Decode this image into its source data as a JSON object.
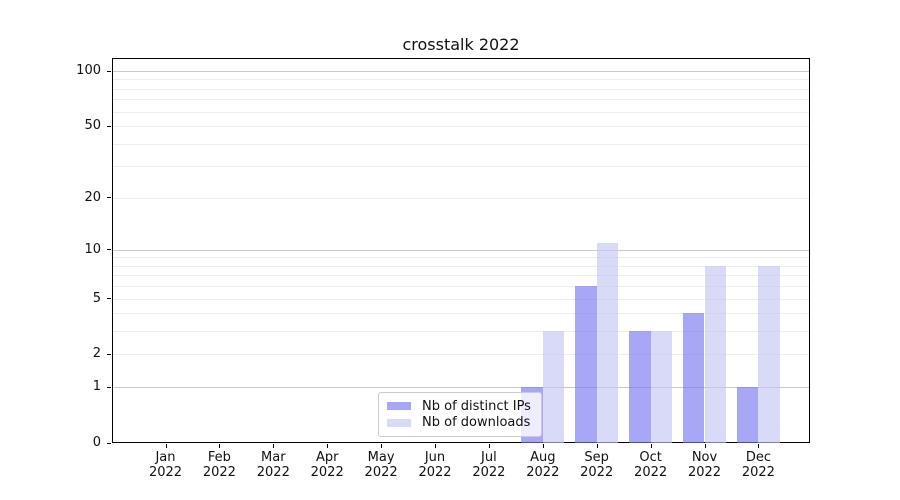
{
  "chart": {
    "title": "crosstalk 2022"
  },
  "chart_data": {
    "type": "bar",
    "title": "crosstalk 2022",
    "categories": [
      "Jan 2022",
      "Feb 2022",
      "Mar 2022",
      "Apr 2022",
      "May 2022",
      "Jun 2022",
      "Jul 2022",
      "Aug 2022",
      "Sep 2022",
      "Oct 2022",
      "Nov 2022",
      "Dec 2022"
    ],
    "series": [
      {
        "name": "Nb of distinct IPs",
        "color": "#a6a6f5",
        "fill": "rgba(120,120,240,0.65)",
        "values": [
          0,
          0,
          0,
          0,
          0,
          0,
          0,
          1,
          6,
          3,
          4,
          1
        ]
      },
      {
        "name": "Nb of downloads",
        "color": "#d9d9f8",
        "fill": "rgba(196,196,244,0.65)",
        "values": [
          0,
          0,
          0,
          0,
          0,
          0,
          0,
          3,
          11,
          3,
          8,
          8
        ]
      }
    ],
    "xlabel": "",
    "ylabel": "",
    "yscale": "log1p",
    "ylim": [
      0,
      100
    ],
    "y_ticks": [
      0,
      1,
      2,
      5,
      10,
      20,
      50,
      100
    ],
    "y_major_grid": [
      1,
      10,
      100
    ],
    "y_minor_grid": [
      2,
      3,
      4,
      5,
      6,
      7,
      8,
      9,
      20,
      30,
      40,
      50,
      60,
      70,
      80,
      90
    ],
    "grid": "horizontal",
    "legend_position": "inside-bottom-center",
    "colors": {
      "major_grid": "#c9c9c9",
      "minor_grid": "#ededed",
      "spine": "#000000",
      "legend_border": "#cccccc"
    }
  }
}
